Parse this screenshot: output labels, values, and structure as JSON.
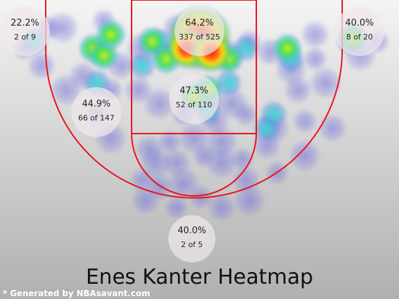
{
  "chart_data": {
    "type": "heatmap",
    "title": "Enes Kanter Heatmap",
    "credit": "* Generated by NBAsavant.com",
    "zones": [
      {
        "id": "left-corner-3",
        "pct": "22.2%",
        "attempts": "2 of 9",
        "made": 2,
        "total": 9
      },
      {
        "id": "restricted-area",
        "pct": "64.2%",
        "attempts": "337 of 525",
        "made": 337,
        "total": 525
      },
      {
        "id": "right-corner-3",
        "pct": "40.0%",
        "attempts": "8 of 20",
        "made": 8,
        "total": 20
      },
      {
        "id": "left-mid-range",
        "pct": "44.9%",
        "attempts": "66 of 147",
        "made": 66,
        "total": 147
      },
      {
        "id": "paint-non-ra",
        "pct": "47.3%",
        "attempts": "52 of 110",
        "made": 52,
        "total": 110
      },
      {
        "id": "above-break-3",
        "pct": "40.0%",
        "attempts": "2 of 5",
        "made": 2,
        "total": 5
      }
    ],
    "colors": {
      "court_line": "#e8141c",
      "bg_top": "#f2f2f2",
      "bg_bottom": "#b3b3b3",
      "heat_low": "#7b7bd6",
      "heat_mid": "#66dd44",
      "heat_high": "#ee2222"
    }
  }
}
